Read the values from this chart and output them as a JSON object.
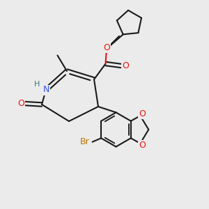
{
  "background_color": "#ebebeb",
  "bond_color": "#1a1a1a",
  "oxygen_color": "#ee1111",
  "nitrogen_color": "#3355ee",
  "bromine_color": "#bb7700",
  "hydrogen_color": "#337777",
  "figsize": [
    3.0,
    3.0
  ],
  "dpi": 100,
  "xlim": [
    0,
    10
  ],
  "ylim": [
    0,
    10
  ]
}
